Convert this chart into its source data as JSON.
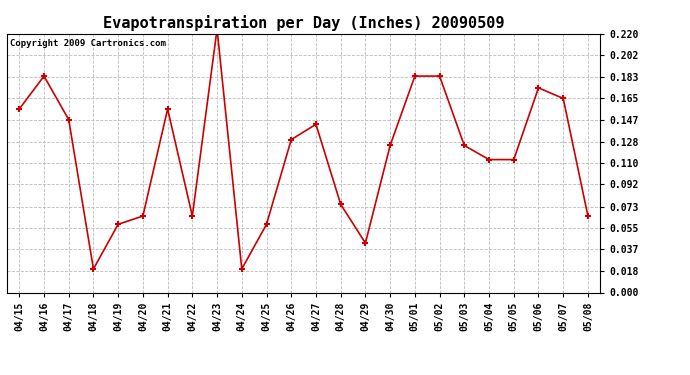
{
  "title": "Evapotranspiration per Day (Inches) 20090509",
  "copyright_text": "Copyright 2009 Cartronics.com",
  "x_labels": [
    "04/15",
    "04/16",
    "04/17",
    "04/18",
    "04/19",
    "04/20",
    "04/21",
    "04/22",
    "04/23",
    "04/24",
    "04/25",
    "04/26",
    "04/27",
    "04/28",
    "04/29",
    "04/30",
    "05/01",
    "05/02",
    "05/03",
    "05/04",
    "05/05",
    "05/06",
    "05/07",
    "05/08"
  ],
  "y_values": [
    0.156,
    0.184,
    0.147,
    0.02,
    0.058,
    0.065,
    0.156,
    0.065,
    0.224,
    0.02,
    0.058,
    0.13,
    0.143,
    0.075,
    0.042,
    0.125,
    0.184,
    0.184,
    0.125,
    0.113,
    0.113,
    0.174,
    0.165,
    0.065
  ],
  "line_color": "#cc0000",
  "marker": "+",
  "marker_size": 5,
  "marker_edge_width": 1.5,
  "line_width": 1.2,
  "bg_color": "#ffffff",
  "plot_bg_color": "#ffffff",
  "grid_color": "#bbbbbb",
  "y_min": 0.0,
  "y_max": 0.22,
  "y_ticks": [
    0.0,
    0.018,
    0.037,
    0.055,
    0.073,
    0.092,
    0.11,
    0.128,
    0.147,
    0.165,
    0.183,
    0.202,
    0.22
  ],
  "title_fontsize": 11,
  "tick_fontsize": 7,
  "copyright_fontsize": 6.5
}
